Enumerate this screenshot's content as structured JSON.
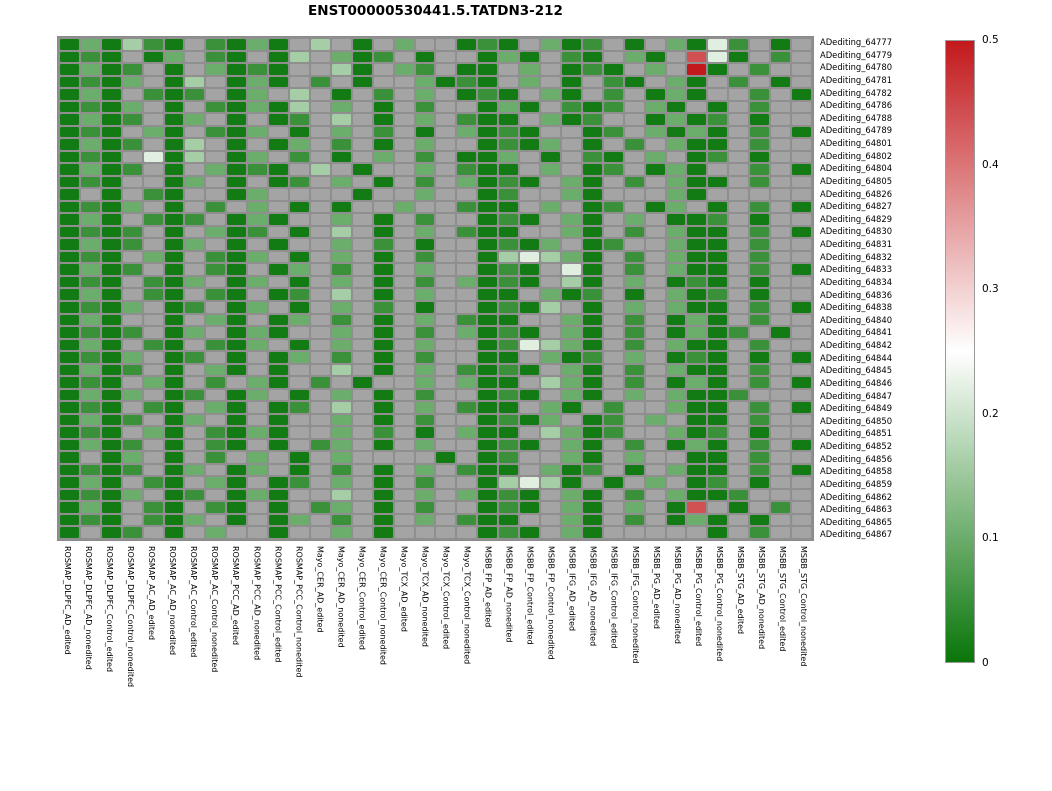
{
  "title": "ENST00000530441.5.TATDN3-212",
  "chart_data": {
    "type": "heatmap",
    "title": "ENST00000530441.5.TATDN3-212",
    "rows": [
      "ADediting_64777",
      "ADediting_64779",
      "ADediting_64780",
      "ADediting_64781",
      "ADediting_64782",
      "ADediting_64786",
      "ADediting_64788",
      "ADediting_64789",
      "ADediting_64801",
      "ADediting_64802",
      "ADediting_64804",
      "ADediting_64805",
      "ADediting_64826",
      "ADediting_64827",
      "ADediting_64829",
      "ADediting_64830",
      "ADediting_64831",
      "ADediting_64832",
      "ADediting_64833",
      "ADediting_64834",
      "ADediting_64836",
      "ADediting_64838",
      "ADediting_64840",
      "ADediting_64841",
      "ADediting_64842",
      "ADediting_64844",
      "ADediting_64845",
      "ADediting_64846",
      "ADediting_64847",
      "ADediting_64849",
      "ADediting_64850",
      "ADediting_64851",
      "ADediting_64852",
      "ADediting_64856",
      "ADediting_64858",
      "ADediting_64859",
      "ADediting_64862",
      "ADediting_64863",
      "ADediting_64865",
      "ADediting_64867"
    ],
    "columns": [
      "ROSMAP_DLPFC_AD_edited",
      "ROSMAP_DLPFC_AD_nonedited",
      "ROSMAP_DLPFC_Control_edited",
      "ROSMAP_DLPFC_Control_nonedited",
      "ROSMAP_AC_AD_edited",
      "ROSMAP_AC_AD_nonedited",
      "ROSMAP_AC_Control_edited",
      "ROSMAP_AC_Control_nonedited",
      "ROSMAP_PCC_AD_edited",
      "ROSMAP_PCC_AD_nonedited",
      "ROSMAP_PCC_Control_edited",
      "ROSMAP_PCC_Control_nonedited",
      "Mayo_CER_AD_edited",
      "Mayo_CER_AD_nonedited",
      "Mayo_CER_Control_edited",
      "Mayo_CER_Control_nonedited",
      "Mayo_TCX_AD_edited",
      "Mayo_TCX_AD_nonedited",
      "Mayo_TCX_Control_edited",
      "Mayo_TCX_Control_nonedited",
      "MSBB_FP_AD_edited",
      "MSBB_FP_AD_nonedited",
      "MSBB_FP_Control_edited",
      "MSBB_FP_Control_nonedited",
      "MSBB_IFG_AD_edited",
      "MSBB_IFG_AD_nonedited",
      "MSBB_IFG_Control_edited",
      "MSBB_IFG_Control_nonedited",
      "MSBB_PG_AD_edited",
      "MSBB_PG_AD_nonedited",
      "MSBB_PG_Control_edited",
      "MSBB_PG_Control_nonedited",
      "MSBB_STG_AD_edited",
      "MSBB_STG_AD_nonedited",
      "MSBB_STG_Control_edited",
      "MSBB_STG_Control_nonedited"
    ],
    "value_scale": {
      "min": 0,
      "max": 0.5
    },
    "colorbar_ticks": [
      "0.5",
      "0.4",
      "0.3",
      "0.2",
      "0.1",
      "0"
    ],
    "na_color": "#a4a4a4",
    "colormap": {
      "low": "#097609",
      "mid": "#ffffff",
      "high": "#c2191c",
      "mid_value": 0.25
    },
    "cell_codes": {
      "d": 0.01,
      "g": 0.05,
      "m": 0.1,
      "l": 0.16,
      "p": 0.22,
      "r": 0.44,
      "R": 0.5,
      ".": null
    },
    "matrix": [
      "dmdlgd.gdmd.l.d.m..dgd.mdg.d.mdpg.d.",
      "dgd.dm.gd.dl.mdg.d..dmd.gd.md.rpd.g.",
      "dmdg.d.mdgd..ld.mg.dd.m.dgd.m.Rd.g..",
      "dgdm.dl.dmd.g.d..mdgd.m.d.gd.md.g.d.",
      "dmd.gdg.dm.l.d.g.m.dgd.md.g.dmd..g.d",
      "dgdm.d.gdmdl.m.d.g..dmd.gdg.md.d.g..",
      "dmdg.dm.d.dg.l.d.m.gdd.mdg..dmdg.d..",
      "dgd.md.gdm.d.m.g.d.mdgd..dg.mdmd.g.d",
      "dmdg.dl.d.dm.g.d.m..dgdm.d.g.mdd.g..",
      "dgd.pdl.dm.g.d.m.g.ddm.d.gd.m.dg.d..",
      "dmdg.d.mdgd.l.d..m.gdd.m.dg.dmd..g.d",
      "dgd..dm.d.dg.m.d.g.mdgd.md.g.mdd.g..",
      "d.d.gd..dm....d..m..dg..md...md.....",
      "dgdm.d.g.m.d.d..m..gdd.m.dg.dm.d.g.d",
      "dmd.gdg.dmd..m.d.g..dgd.md.m.ddg.d..",
      "dgdg.d.mdg.d.l.d.m.gdd..md.g.mdd.g.d",
      "dmdg.dm.d.d..m.g.d..dgdm.dg..mdd.g..",
      "dgd.md.gdm.d.m.d.g..dlplmd.g.mdd.g..",
      "dmdg.d.gd.dm.g.d.m..dgd.pd.g.mdd.g.d",
      "dgd.gdm.dm.d.m.d.g.mdgd.ld.m.dgd.d..",
      "dmd.gd.gd.dg.l.d.m..dd.mdg.d.mdg.d..",
      "dgdm.dg.dm.d.m.g.d..dgdl.d.m.mdd.g.d",
      "dmd..d.md.dm.g.d.m.gdd..md.g.dmd.g..",
      "dgdg.dm.dmd..m.d.g.mdgd.md.g.dmdg.d.",
      "dmd.gd.gdm.d.m.d.m..dgplmd.g.mdd.g..",
      "dgdm.dg.d.dm.g.d.g..dd.mdg.m.dgd.d.d",
      "dmdg.d.md.d..l.d.m.gdgd.md.g.mdd.g..",
      "dgd.md.g.md.g.d..m.mdd.lmd.g.dmd.g.d",
      "dmdm.dg.dm.d.m.d.g..dgd.md.m.mddg...",
      "dgd.gd.md.dg.l.d.m.gdd.md.g..mdd.g.d",
      "dmdg.dm.d.d..m.d.g..dgdm.dg.m.dd.g..",
      "dgd.md.gdmd..m.g.d.mdd.lmdg..mdg.d..",
      "dmdg.d.gd.d.gm.d.m..dgd.md.g.dmd.g.d",
      "d.dm.d.g.m.d.m....d.dg..md.m..dd.g..",
      "dgdg.dm.dm.d.g.d.m.gdd.mdg.d.mdd.g.d",
      "dmd.gd.md.dg.m.d.g..dlpld.d.m.dg.d..",
      "dgdm.dg.dmd..l.d.m.mdgd.md.g.mddg...",
      "dmd.gd.gd.d.gm.d.g..dgd.md.m.dr.d.g.",
      "dgd.gdm.d.dm.g.d.m.gdd..md.g.dmd.d..",
      "d.dg.d.m..d..m.d....dgd.md.....d.g.."
    ]
  }
}
